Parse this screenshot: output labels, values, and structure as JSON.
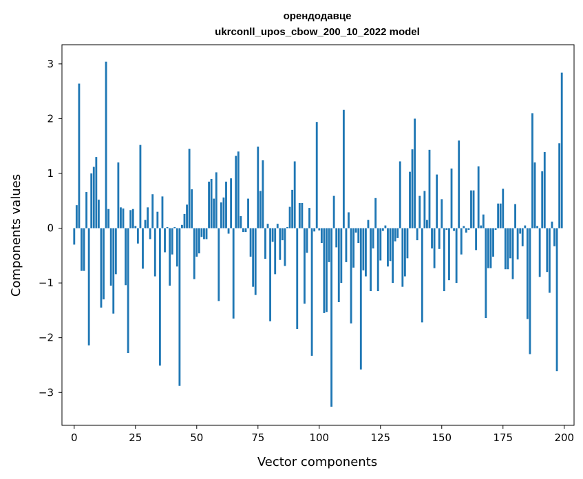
{
  "chart_data": {
    "type": "bar",
    "title": "орендодавце",
    "subtitle": "ukrconll_upos_cbow_200_10_2022 model",
    "xlabel": "Vector components",
    "ylabel": "Components values",
    "xlim": [
      -5,
      204
    ],
    "ylim": [
      -3.6,
      3.35
    ],
    "xticks": [
      0,
      25,
      50,
      75,
      100,
      125,
      150,
      175,
      200
    ],
    "yticks": [
      -3,
      -2,
      -1,
      0,
      1,
      2,
      3
    ],
    "ytick_labels": [
      "−3",
      "−2",
      "−1",
      "0",
      "1",
      "2",
      "3"
    ],
    "bar_color": "#1f77b4",
    "values": [
      -0.3,
      0.42,
      2.64,
      -0.78,
      -0.78,
      0.66,
      -2.14,
      1.0,
      1.12,
      1.3,
      0.52,
      -1.45,
      -1.3,
      3.04,
      0.35,
      -1.05,
      -1.56,
      -0.84,
      1.2,
      0.38,
      0.36,
      -1.04,
      -2.28,
      0.33,
      0.35,
      0.04,
      -0.28,
      1.52,
      -0.74,
      0.15,
      0.38,
      -0.2,
      0.62,
      -0.88,
      0.3,
      -2.51,
      0.58,
      -0.44,
      0.02,
      -1.05,
      -0.48,
      0.02,
      -0.7,
      -2.88,
      0.06,
      0.26,
      0.43,
      1.45,
      0.71,
      -0.93,
      -0.52,
      -0.46,
      -0.16,
      -0.2,
      -0.2,
      0.85,
      0.9,
      0.54,
      1.02,
      -1.33,
      0.47,
      0.56,
      0.85,
      -0.1,
      0.91,
      -1.65,
      1.32,
      1.4,
      0.22,
      -0.07,
      -0.07,
      0.54,
      -0.52,
      -1.07,
      -1.22,
      1.49,
      0.68,
      1.24,
      -0.56,
      0.08,
      -1.7,
      -0.25,
      -0.84,
      0.08,
      -0.58,
      -0.22,
      -0.69,
      0.02,
      0.39,
      0.7,
      1.22,
      -1.84,
      0.46,
      0.46,
      -1.38,
      -0.45,
      0.37,
      -2.33,
      -0.06,
      1.94,
      -0.04,
      -0.27,
      -1.55,
      -1.53,
      -0.62,
      -3.26,
      0.59,
      -0.35,
      -1.35,
      -1.0,
      2.16,
      -0.62,
      0.29,
      -1.74,
      -0.72,
      -0.08,
      -0.27,
      -2.58,
      -0.77,
      -0.88,
      0.15,
      -1.15,
      -0.37,
      0.55,
      -1.15,
      -0.59,
      -0.05,
      0.05,
      -0.7,
      -0.6,
      -1.0,
      -0.24,
      -0.18,
      1.22,
      -1.07,
      -0.88,
      -0.55,
      1.03,
      1.44,
      2.0,
      -0.22,
      0.59,
      -1.72,
      0.68,
      0.15,
      1.43,
      -0.37,
      -0.73,
      0.98,
      -0.38,
      0.53,
      -1.15,
      -0.03,
      -0.95,
      1.09,
      -0.05,
      -1.0,
      1.6,
      -0.48,
      0.04,
      -0.08,
      -0.03,
      0.69,
      0.69,
      -0.4,
      1.13,
      0.05,
      0.25,
      -1.64,
      -0.73,
      -0.73,
      -0.52,
      -0.03,
      0.45,
      0.45,
      0.72,
      -0.75,
      -0.75,
      -0.55,
      -0.93,
      0.44,
      -0.57,
      -0.1,
      -0.33,
      0.05,
      -1.66,
      -2.3,
      2.1,
      1.2,
      0.04,
      -0.89,
      1.04,
      1.39,
      -0.8,
      -1.18,
      0.12,
      -0.33,
      -2.61,
      1.55,
      2.84
    ]
  }
}
